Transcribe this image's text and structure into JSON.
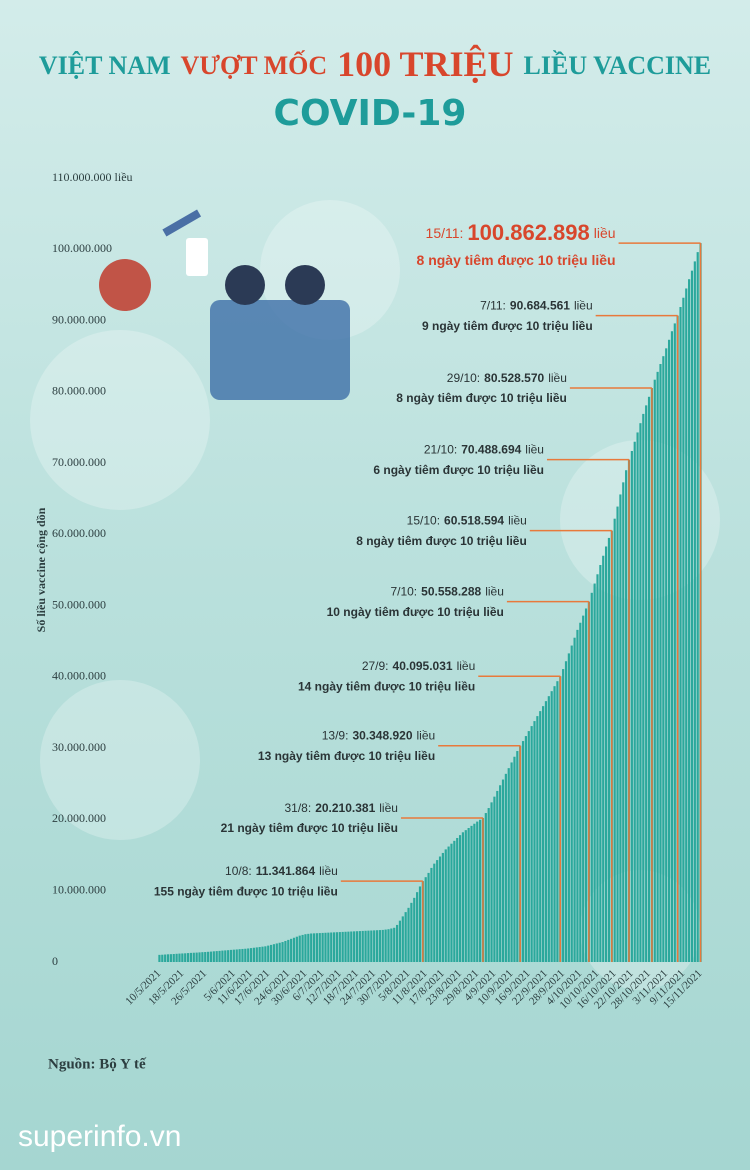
{
  "chart_data": {
    "type": "bar",
    "title": [
      "VIỆT NAM",
      "VƯỢT MỐC",
      "100 TRIỆU",
      "LIỀU VACCINE"
    ],
    "subtitle": "COVID-19",
    "y_label": "Số liều vaccine cộng dồn",
    "source": "Nguồn: Bộ Y tế",
    "watermark": "superinfo.vn",
    "color": "#2ba89c",
    "ylim": [
      0,
      110000000
    ],
    "yticks": [
      0,
      {
        "value": 10000000,
        "label": "10.000.000"
      },
      {
        "value": 20000000,
        "label": "20.000.000"
      },
      {
        "value": 30000000,
        "label": "30.000.000"
      },
      {
        "value": 40000000,
        "label": "40.000.000"
      },
      {
        "value": 50000000,
        "label": "50.000.000"
      },
      {
        "value": 60000000,
        "label": "60.000.000"
      },
      {
        "value": 70000000,
        "label": "70.000.000"
      },
      {
        "value": 80000000,
        "label": "80.000.000"
      },
      {
        "value": 90000000,
        "label": "90.000.000"
      },
      {
        "value": 100000000,
        "label": "100.000.000"
      },
      {
        "value": 110000000,
        "label": "110.000.000 liều"
      }
    ],
    "categories": [
      "10/5/2021",
      null,
      null,
      null,
      null,
      null,
      null,
      null,
      "18/5/2021",
      null,
      null,
      null,
      null,
      null,
      null,
      null,
      "26/5/2021",
      null,
      null,
      null,
      null,
      null,
      null,
      null,
      null,
      null,
      "5/6/2021",
      null,
      null,
      null,
      null,
      null,
      "11/6/2021",
      null,
      null,
      null,
      null,
      null,
      "17/6/2021",
      null,
      null,
      null,
      null,
      null,
      null,
      "24/6/2021",
      null,
      null,
      null,
      null,
      null,
      "30/6/2021",
      null,
      null,
      null,
      null,
      null,
      "6/7/2021",
      null,
      null,
      null,
      null,
      null,
      "12/7/2021",
      null,
      null,
      null,
      null,
      null,
      "18/7/2021",
      null,
      null,
      null,
      null,
      null,
      "24/7/2021",
      null,
      null,
      null,
      null,
      null,
      "30/7/2021",
      null,
      null,
      null,
      null,
      null,
      "5/8/2021",
      null,
      null,
      null,
      null,
      null,
      "11/8/2021",
      null,
      null,
      null,
      null,
      null,
      "17/8/2021",
      null,
      null,
      null,
      null,
      null,
      "23/8/2021",
      null,
      null,
      null,
      null,
      null,
      "29/8/2021",
      null,
      null,
      null,
      null,
      null,
      "4/9/2021",
      null,
      null,
      null,
      null,
      null,
      "10/9/2021",
      null,
      null,
      null,
      null,
      null,
      "16/9/2021",
      null,
      null,
      null,
      null,
      null,
      "22/9/2021",
      null,
      null,
      null,
      null,
      null,
      "28/9/2021",
      null,
      null,
      null,
      null,
      null,
      "4/10/2021",
      null,
      null,
      null,
      null,
      null,
      "10/10/2021",
      null,
      null,
      null,
      null,
      null,
      "16/10/2021",
      null,
      null,
      null,
      null,
      null,
      "22/10/2021",
      null,
      null,
      null,
      null,
      null,
      "28/10/2021",
      null,
      null,
      null,
      null,
      null,
      "3/11/2021",
      null,
      null,
      null,
      null,
      null,
      "9/11/2021",
      null,
      null,
      null,
      null,
      null,
      "15/11/2021"
    ],
    "values": [
      1000000,
      1020000,
      1050000,
      1080000,
      1100000,
      1120000,
      1150000,
      1180000,
      1200000,
      1220000,
      1250000,
      1280000,
      1300000,
      1320000,
      1350000,
      1380000,
      1400000,
      1430000,
      1460000,
      1500000,
      1530000,
      1560000,
      1600000,
      1630000,
      1660000,
      1700000,
      1730000,
      1760000,
      1800000,
      1830000,
      1860000,
      1900000,
      1950000,
      2000000,
      2050000,
      2100000,
      2150000,
      2200000,
      2300000,
      2400000,
      2500000,
      2600000,
      2700000,
      2800000,
      2950000,
      3100000,
      3250000,
      3400000,
      3550000,
      3700000,
      3800000,
      3900000,
      3950000,
      4000000,
      4020000,
      4040000,
      4060000,
      4080000,
      4100000,
      4120000,
      4140000,
      4160000,
      4180000,
      4200000,
      4220000,
      4240000,
      4260000,
      4280000,
      4300000,
      4320000,
      4340000,
      4360000,
      4380000,
      4400000,
      4420000,
      4440000,
      4460000,
      4480000,
      4500000,
      4550000,
      4600000,
      4700000,
      4800000,
      5200000,
      5800000,
      6400000,
      7000000,
      7600000,
      8300000,
      9000000,
      9800000,
      10600000,
      11341864,
      11900000,
      12500000,
      13200000,
      13800000,
      14300000,
      14800000,
      15300000,
      15800000,
      16200000,
      16600000,
      17000000,
      17400000,
      17800000,
      18200000,
      18500000,
      18800000,
      19100000,
      19400000,
      19700000,
      19950000,
      20210381,
      20900000,
      21600000,
      22400000,
      23200000,
      24000000,
      24800000,
      25600000,
      26400000,
      27200000,
      28000000,
      28800000,
      29600000,
      30348920,
      31000000,
      31700000,
      32400000,
      33100000,
      33800000,
      34500000,
      35200000,
      35900000,
      36600000,
      37300000,
      38000000,
      38700000,
      39400000,
      40095031,
      41100000,
      42200000,
      43300000,
      44400000,
      45500000,
      46600000,
      47600000,
      48600000,
      49600000,
      50558288,
      51800000,
      53100000,
      54400000,
      55700000,
      57000000,
      58300000,
      59500000,
      60518594,
      62200000,
      63900000,
      65600000,
      67300000,
      69000000,
      70488694,
      71700000,
      73000000,
      74300000,
      75600000,
      76900000,
      78100000,
      79300000,
      80528570,
      81700000,
      82800000,
      83900000,
      85000000,
      86100000,
      87300000,
      88500000,
      89600000,
      90684561,
      91900000,
      93200000,
      94500000,
      95800000,
      97000000,
      98300000,
      99600000,
      100862898
    ],
    "annotations": [
      {
        "date": "15/11:",
        "value": 100862898,
        "value_label": "100.862.898",
        "unit": "liều",
        "note": "8 ngày tiêm được 10 triệu liều"
      },
      {
        "date": "7/11:",
        "value": 90684561,
        "value_label": "90.684.561",
        "unit": "liều",
        "note": "9 ngày tiêm được 10 triệu liều"
      },
      {
        "date": "29/10:",
        "value": 80528570,
        "value_label": "80.528.570",
        "unit": "liều",
        "note": "8 ngày tiêm được 10 triệu liều"
      },
      {
        "date": "21/10:",
        "value": 70488694,
        "value_label": "70.488.694",
        "unit": "liều",
        "note": "6 ngày tiêm được 10 triệu liều"
      },
      {
        "date": "15/10:",
        "value": 60518594,
        "value_label": "60.518.594",
        "unit": "liều",
        "note": "8 ngày tiêm được 10 triệu liều"
      },
      {
        "date": "7/10:",
        "value": 50558288,
        "value_label": "50.558.288",
        "unit": "liều",
        "note": "10 ngày tiêm được 10 triệu liều"
      },
      {
        "date": "27/9:",
        "value": 40095031,
        "value_label": "40.095.031",
        "unit": "liều",
        "note": "14 ngày tiêm được 10 triệu liều"
      },
      {
        "date": "13/9:",
        "value": 30348920,
        "value_label": "30.348.920",
        "unit": "liều",
        "note": "13 ngày tiêm được 10 triệu liều"
      },
      {
        "date": "31/8:",
        "value": 20210381,
        "value_label": "20.210.381",
        "unit": "liều",
        "note": "21 ngày tiêm được 10 triệu liều"
      },
      {
        "date": "10/8:",
        "value": 11341864,
        "value_label": "11.341.864",
        "unit": "liều",
        "note": "155 ngày tiêm được 10 triệu liều"
      }
    ]
  }
}
